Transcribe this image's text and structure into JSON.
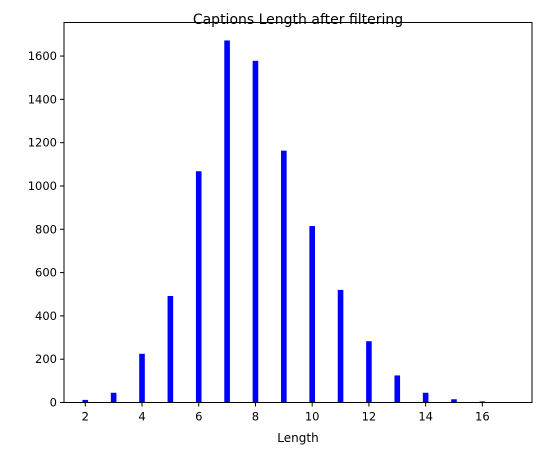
{
  "chart_data": {
    "type": "bar",
    "title": "Captions Length after filtering",
    "xlabel": "Length",
    "ylabel": "",
    "x": [
      2,
      3,
      4,
      5,
      6,
      7,
      8,
      9,
      10,
      11,
      12,
      13,
      14,
      15,
      16,
      17
    ],
    "values": [
      12,
      45,
      225,
      492,
      1068,
      1672,
      1578,
      1163,
      815,
      520,
      283,
      125,
      45,
      15,
      5,
      1
    ],
    "xlim": [
      1.25,
      17.75
    ],
    "ylim": [
      0,
      1755
    ],
    "xticks": [
      2,
      4,
      6,
      8,
      10,
      12,
      14,
      16
    ],
    "yticks": [
      0,
      200,
      400,
      600,
      800,
      1000,
      1200,
      1400,
      1600
    ],
    "bar_color": "#0000ff",
    "grid": false,
    "legend": "none"
  }
}
